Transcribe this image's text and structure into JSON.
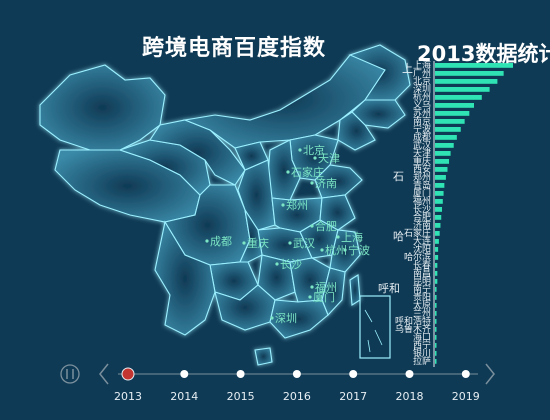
{
  "titles": {
    "main": "跨境电商百度指数",
    "side": "2013数据统计"
  },
  "colors": {
    "background": "#0f3a55",
    "map_fill": "#1d5f7a",
    "map_glow": "#7fe3ff",
    "bar": "#2fe3b4",
    "city": "#7ce6c4",
    "timeline_active": "#c23531"
  },
  "map_cities": [
    {
      "name": "北京"
    },
    {
      "name": "天津"
    },
    {
      "name": "石家庄"
    },
    {
      "name": "济南"
    },
    {
      "name": "郑州"
    },
    {
      "name": "合肥"
    },
    {
      "name": "上海"
    },
    {
      "name": "成都"
    },
    {
      "name": "重庆"
    },
    {
      "name": "武汉"
    },
    {
      "name": "杭州"
    },
    {
      "name": "宁波"
    },
    {
      "name": "长沙"
    },
    {
      "name": "福州"
    },
    {
      "name": "厦门"
    },
    {
      "name": "深圳"
    }
  ],
  "chart_data": {
    "type": "bar",
    "orientation": "horizontal",
    "title": "2013数据统计",
    "categories": [
      "上海",
      "广州",
      "北京",
      "深圳",
      "杭州",
      "义乌",
      "苏州",
      "南京",
      "宁波",
      "成都",
      "武汉",
      "天津",
      "重庆",
      "西安",
      "郑州",
      "青岛",
      "厦门",
      "福州",
      "长沙",
      "合肥",
      "济南",
      "石家庄",
      "大连",
      "沈阳",
      "哈尔滨",
      "长春",
      "南昌",
      "昆明",
      "南宁",
      "贵阳",
      "太原",
      "兰州",
      "呼和浩特",
      "乌鲁木齐",
      "海口",
      "西宁",
      "银川",
      "拉萨"
    ],
    "values": [
      100,
      88,
      80,
      70,
      60,
      50,
      44,
      38,
      33,
      28,
      24,
      20,
      18,
      16,
      14,
      12,
      11,
      10,
      9,
      8,
      7,
      6,
      5,
      4,
      4,
      3,
      3,
      3,
      2,
      2,
      2,
      2,
      1,
      1,
      1,
      1,
      1,
      1
    ],
    "left_labels": [
      "上",
      "石",
      "哈",
      "呼和"
    ]
  },
  "timeline": {
    "years": [
      "2013",
      "2014",
      "2015",
      "2016",
      "2017",
      "2018",
      "2019"
    ],
    "current": "2013"
  },
  "icons": {
    "play": "pause-icon",
    "prev": "chevron-left-icon",
    "next": "chevron-right-icon"
  }
}
